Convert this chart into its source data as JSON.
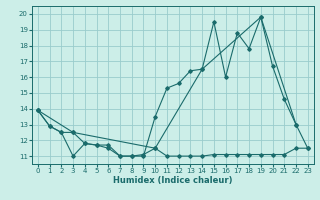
{
  "xlabel": "Humidex (Indice chaleur)",
  "bg_color": "#cceee8",
  "grid_color": "#99cccc",
  "line_color": "#1a6b6b",
  "xlim": [
    -0.5,
    23.5
  ],
  "ylim": [
    10.5,
    20.5
  ],
  "yticks": [
    11,
    12,
    13,
    14,
    15,
    16,
    17,
    18,
    19,
    20
  ],
  "xticks": [
    0,
    1,
    2,
    3,
    4,
    5,
    6,
    7,
    8,
    9,
    10,
    11,
    12,
    13,
    14,
    15,
    16,
    17,
    18,
    19,
    20,
    21,
    22,
    23
  ],
  "line1_x": [
    0,
    1,
    2,
    3,
    4,
    5,
    6,
    7,
    8,
    9,
    10,
    11,
    12,
    13,
    14,
    15,
    16,
    17,
    18,
    19,
    20,
    21,
    22,
    23
  ],
  "line1_y": [
    13.9,
    12.9,
    12.5,
    11.0,
    11.8,
    11.7,
    11.5,
    11.0,
    11.0,
    11.1,
    11.5,
    11.0,
    11.0,
    11.0,
    11.0,
    11.1,
    11.1,
    11.1,
    11.1,
    11.1,
    11.1,
    11.1,
    11.5,
    11.5
  ],
  "line2_x": [
    0,
    1,
    2,
    3,
    4,
    5,
    6,
    7,
    8,
    9,
    10,
    11,
    12,
    13,
    14,
    15,
    16,
    17,
    18,
    19,
    20,
    21,
    22,
    23
  ],
  "line2_y": [
    13.9,
    12.9,
    12.5,
    12.5,
    11.8,
    11.7,
    11.7,
    11.0,
    11.0,
    11.0,
    13.5,
    15.3,
    15.6,
    16.4,
    16.5,
    19.5,
    16.0,
    18.8,
    17.8,
    19.8,
    16.7,
    14.6,
    13.0,
    11.5
  ],
  "line3_x": [
    0,
    3,
    10,
    14,
    19,
    22
  ],
  "line3_y": [
    13.9,
    12.5,
    11.5,
    16.5,
    19.8,
    13.0
  ]
}
